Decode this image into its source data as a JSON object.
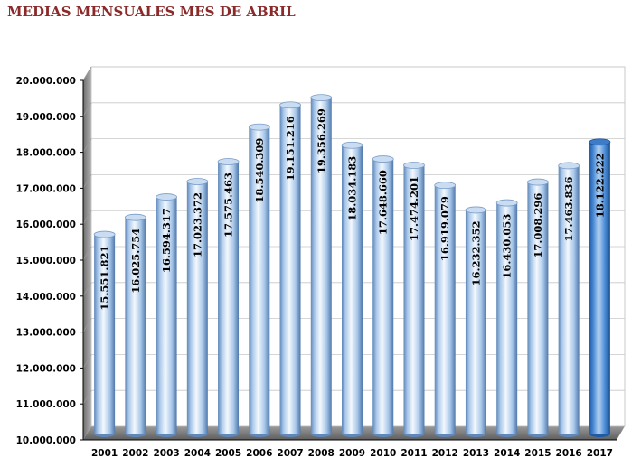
{
  "chart_data": {
    "type": "bar",
    "title": "MEDIAS MENSUALES MES DE ABRIL",
    "categories": [
      "2001",
      "2002",
      "2003",
      "2004",
      "2005",
      "2006",
      "2007",
      "2008",
      "2009",
      "2010",
      "2011",
      "2012",
      "2013",
      "2014",
      "2015",
      "2016",
      "2017"
    ],
    "values": [
      15551821,
      16025754,
      16594317,
      17023372,
      17575463,
      18540309,
      19151216,
      19356269,
      18034183,
      17648660,
      17474201,
      16919079,
      16232352,
      16430053,
      17008296,
      17463836,
      18122222
    ],
    "data_labels": [
      "15.551.821",
      "16.025.754",
      "16.594.317",
      "17.023.372",
      "17.575.463",
      "18.540.309",
      "19.151.216",
      "19.356.269",
      "18.034.183",
      "17.648.660",
      "17.474.201",
      "16.919.079",
      "16.232.352",
      "16.430.053",
      "17.008.296",
      "17.463.836",
      "18.122.222"
    ],
    "ylim": [
      10000000,
      20000000
    ],
    "yticks": [
      10000000,
      11000000,
      12000000,
      13000000,
      14000000,
      15000000,
      16000000,
      17000000,
      18000000,
      19000000,
      20000000
    ],
    "ytick_labels": [
      "10.000.000",
      "11.000.000",
      "12.000.000",
      "13.000.000",
      "14.000.000",
      "15.000.000",
      "16.000.000",
      "17.000.000",
      "18.000.000",
      "19.000.000",
      "20.000.000"
    ],
    "xlabel": "",
    "ylabel": "",
    "grid": true,
    "colors": {
      "bar": "#9ec3ea",
      "bar_highlight": "#5a95d6",
      "title": "#8b2a2a"
    }
  }
}
